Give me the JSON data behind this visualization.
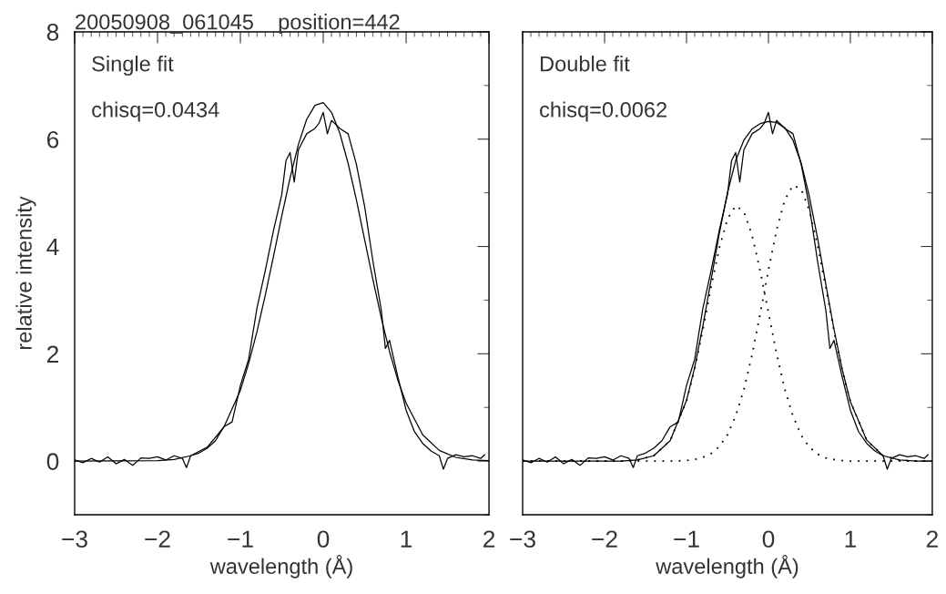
{
  "chart_data": [
    {
      "type": "line",
      "title": "20050908_061045    position=442",
      "xlabel": "wavelength (Å)",
      "ylabel": "relative intensity",
      "annotations": [
        "Single fit",
        "chisq=0.0434"
      ],
      "xlim": [
        -3,
        2
      ],
      "ylim": [
        -1,
        8
      ],
      "xticks": [
        {
          "value": -3,
          "label": "−3"
        },
        {
          "value": -2,
          "label": "−2"
        },
        {
          "value": -1,
          "label": "−1"
        },
        0,
        1,
        2
      ],
      "yticks": [
        0,
        2,
        4,
        6,
        8
      ],
      "grid": false,
      "legend": false,
      "series": [
        {
          "color": "#000000",
          "line_style": "solid",
          "x": [
            -3.0,
            -2.9,
            -2.8,
            -2.7,
            -2.6,
            -2.5,
            -2.4,
            -2.3,
            -2.2,
            -2.1,
            -2.0,
            -1.9,
            -1.8,
            -1.7,
            -1.65,
            -1.6,
            -1.5,
            -1.4,
            -1.3,
            -1.2,
            -1.1,
            -1.0,
            -0.9,
            -0.8,
            -0.7,
            -0.6,
            -0.5,
            -0.45,
            -0.4,
            -0.35,
            -0.3,
            -0.2,
            -0.1,
            -0.05,
            0.0,
            0.05,
            0.1,
            0.2,
            0.3,
            0.4,
            0.5,
            0.6,
            0.7,
            0.75,
            0.8,
            0.9,
            1.0,
            1.1,
            1.2,
            1.3,
            1.4,
            1.45,
            1.5,
            1.6,
            1.7,
            1.8,
            1.9,
            1.95
          ],
          "values": [
            0.02,
            -0.03,
            0.05,
            -0.02,
            0.08,
            -0.05,
            0.03,
            -0.08,
            0.06,
            0.05,
            0.08,
            0.02,
            0.1,
            0.05,
            -0.12,
            0.1,
            0.15,
            0.24,
            0.38,
            0.64,
            0.73,
            1.41,
            1.9,
            2.85,
            3.55,
            4.3,
            4.97,
            5.6,
            5.75,
            5.2,
            5.8,
            6.1,
            6.2,
            6.3,
            6.5,
            6.1,
            6.35,
            6.2,
            6.1,
            5.53,
            4.74,
            3.72,
            2.82,
            2.1,
            2.25,
            1.57,
            0.95,
            0.55,
            0.33,
            0.19,
            0.1,
            -0.15,
            0.05,
            0.12,
            0.08,
            0.1,
            0.05,
            0.12
          ]
        },
        {
          "color": "#000000",
          "line_style": "solid",
          "x": [
            -3,
            -2,
            -1.8,
            -1.6,
            -1.4,
            -1.2,
            -1.0,
            -0.9,
            -0.8,
            -0.7,
            -0.6,
            -0.5,
            -0.4,
            -0.3,
            -0.2,
            -0.1,
            0,
            0.1,
            0.2,
            0.3,
            0.4,
            0.5,
            0.6,
            0.7,
            0.8,
            0.9,
            1.0,
            1.2,
            1.4,
            1.6,
            1.8,
            2.0
          ],
          "values": [
            0,
            0.01,
            0.03,
            0.1,
            0.26,
            0.63,
            1.32,
            1.82,
            2.41,
            3.09,
            3.82,
            4.57,
            5.28,
            5.9,
            6.37,
            6.63,
            6.68,
            6.5,
            6.11,
            5.55,
            4.87,
            4.12,
            3.38,
            2.67,
            2.04,
            1.51,
            1.08,
            0.49,
            0.2,
            0.07,
            0.02,
            0.01
          ]
        }
      ]
    },
    {
      "type": "line",
      "xlabel": "wavelength (Å)",
      "annotations": [
        "Double fit",
        "chisq=0.0062"
      ],
      "xlim": [
        -3,
        2
      ],
      "ylim": [
        -1,
        8
      ],
      "xticks": [
        {
          "value": -3,
          "label": "−3"
        },
        {
          "value": -2,
          "label": "−2"
        },
        {
          "value": -1,
          "label": "−1"
        },
        0,
        1,
        2
      ],
      "yticks": [
        0,
        2,
        4,
        6,
        8
      ],
      "tick_labels": "x",
      "grid": false,
      "legend": false,
      "series": [
        {
          "color": "#000000",
          "line_style": "solid",
          "x": [
            -3.0,
            -2.9,
            -2.8,
            -2.7,
            -2.6,
            -2.5,
            -2.4,
            -2.3,
            -2.2,
            -2.1,
            -2.0,
            -1.9,
            -1.8,
            -1.7,
            -1.65,
            -1.6,
            -1.5,
            -1.4,
            -1.3,
            -1.2,
            -1.1,
            -1.0,
            -0.9,
            -0.8,
            -0.7,
            -0.6,
            -0.5,
            -0.45,
            -0.4,
            -0.35,
            -0.3,
            -0.2,
            -0.1,
            -0.05,
            0.0,
            0.05,
            0.1,
            0.2,
            0.3,
            0.4,
            0.5,
            0.6,
            0.7,
            0.75,
            0.8,
            0.9,
            1.0,
            1.1,
            1.2,
            1.3,
            1.4,
            1.45,
            1.5,
            1.6,
            1.7,
            1.8,
            1.9,
            1.95
          ],
          "values": [
            0.02,
            -0.03,
            0.05,
            -0.02,
            0.08,
            -0.05,
            0.03,
            -0.08,
            0.06,
            0.05,
            0.08,
            0.02,
            0.1,
            0.05,
            -0.12,
            0.1,
            0.15,
            0.24,
            0.38,
            0.64,
            0.73,
            1.41,
            1.9,
            2.85,
            3.55,
            4.3,
            4.97,
            5.6,
            5.75,
            5.2,
            5.8,
            6.1,
            6.2,
            6.3,
            6.5,
            6.1,
            6.35,
            6.2,
            6.1,
            5.53,
            4.74,
            3.72,
            2.82,
            2.1,
            2.25,
            1.57,
            0.95,
            0.55,
            0.33,
            0.19,
            0.1,
            -0.15,
            0.05,
            0.12,
            0.08,
            0.1,
            0.05,
            0.12
          ]
        },
        {
          "color": "#000000",
          "line_style": "solid",
          "x": [
            -3,
            -2,
            -1.8,
            -1.6,
            -1.4,
            -1.2,
            -1.0,
            -0.9,
            -0.8,
            -0.7,
            -0.6,
            -0.5,
            -0.4,
            -0.3,
            -0.2,
            -0.1,
            0,
            0.1,
            0.2,
            0.3,
            0.4,
            0.5,
            0.6,
            0.7,
            0.8,
            0.9,
            1.0,
            1.2,
            1.4,
            1.6,
            1.8,
            2.0
          ],
          "values": [
            0,
            0,
            0,
            0.02,
            0.1,
            0.38,
            1.13,
            1.75,
            2.52,
            3.38,
            4.24,
            5.0,
            5.6,
            5.98,
            6.19,
            6.29,
            6.33,
            6.31,
            6.21,
            5.98,
            5.55,
            4.93,
            4.15,
            3.3,
            2.46,
            1.71,
            1.11,
            0.39,
            0.1,
            0.02,
            0,
            0
          ]
        },
        {
          "color": "#000000",
          "line_style": "dotted",
          "x": [
            -3,
            -2,
            -1.8,
            -1.6,
            -1.4,
            -1.2,
            -1.0,
            -0.9,
            -0.8,
            -0.7,
            -0.6,
            -0.5,
            -0.4,
            -0.3,
            -0.2,
            -0.1,
            0,
            0.1,
            0.2,
            0.3,
            0.4,
            0.5,
            0.6,
            0.7,
            0.8,
            0.9,
            1.0,
            1.2,
            1.4,
            1.6,
            1.8,
            2.0
          ],
          "values": [
            0,
            0,
            0,
            0.02,
            0.1,
            0.38,
            1.12,
            1.72,
            2.45,
            3.24,
            3.97,
            4.51,
            4.76,
            4.65,
            4.21,
            3.54,
            2.77,
            2.0,
            1.34,
            0.84,
            0.48,
            0.26,
            0.13,
            0.06,
            0.03,
            0.01,
            0,
            0,
            0,
            0,
            0,
            0
          ]
        },
        {
          "color": "#000000",
          "line_style": "dotted",
          "x": [
            -3,
            -2,
            -1.8,
            -1.6,
            -1.4,
            -1.2,
            -1.0,
            -0.9,
            -0.8,
            -0.7,
            -0.6,
            -0.5,
            -0.4,
            -0.3,
            -0.2,
            -0.1,
            0,
            0.1,
            0.2,
            0.3,
            0.4,
            0.5,
            0.6,
            0.7,
            0.8,
            0.9,
            1.0,
            1.2,
            1.4,
            1.6,
            1.8,
            2.0
          ],
          "values": [
            0,
            0,
            0,
            0,
            0,
            0,
            0.01,
            0.03,
            0.07,
            0.14,
            0.27,
            0.49,
            0.84,
            1.33,
            1.98,
            2.75,
            3.56,
            4.31,
            4.87,
            5.14,
            5.07,
            4.67,
            4.02,
            3.24,
            2.43,
            1.7,
            1.11,
            0.39,
            0.1,
            0.02,
            0,
            0
          ]
        }
      ]
    }
  ]
}
